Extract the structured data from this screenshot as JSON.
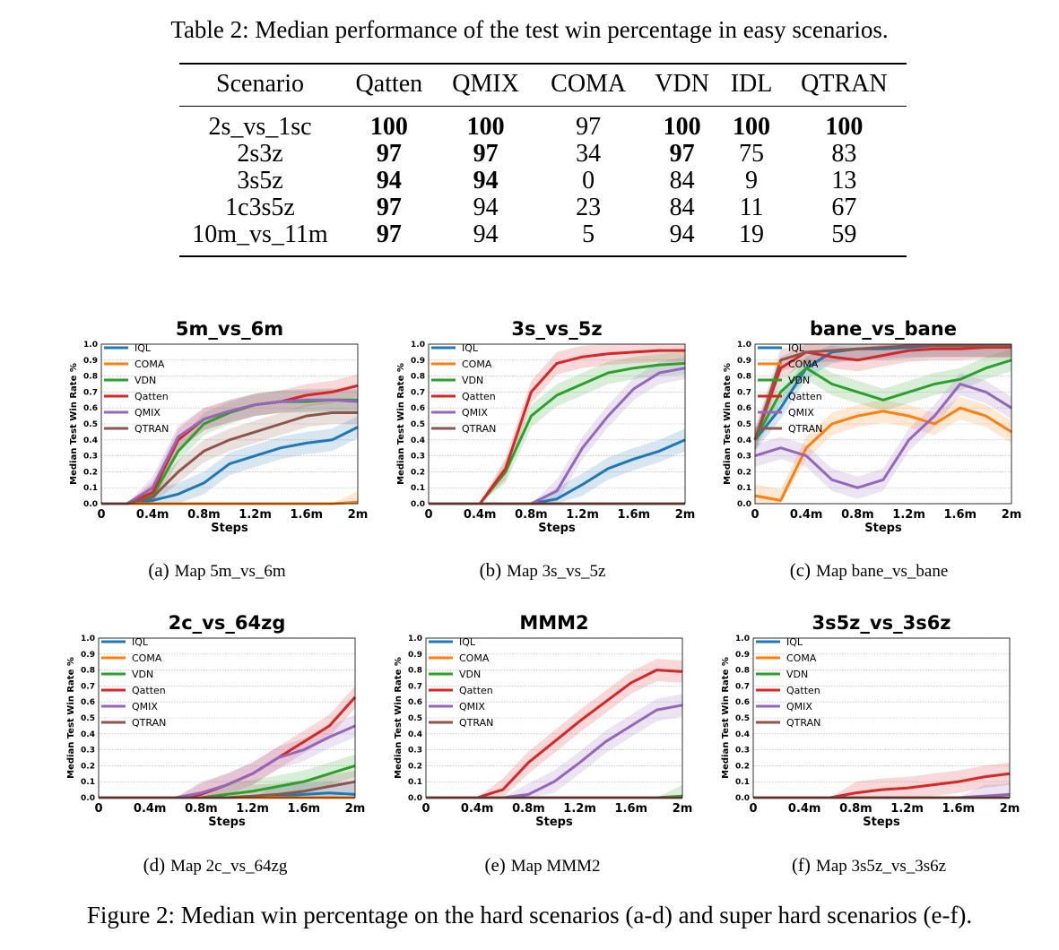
{
  "table": {
    "caption": "Table 2: Median performance of the test win percentage in easy scenarios.",
    "headers": [
      "Scenario",
      "Qatten",
      "QMIX",
      "COMA",
      "VDN",
      "IDL",
      "QTRAN"
    ],
    "rows": [
      {
        "cells": [
          "2s_vs_1sc",
          "100",
          "100",
          "97",
          "100",
          "100",
          "100"
        ],
        "bold": [
          false,
          true,
          true,
          false,
          true,
          true,
          true
        ]
      },
      {
        "cells": [
          "2s3z",
          "97",
          "97",
          "34",
          "97",
          "75",
          "83"
        ],
        "bold": [
          false,
          true,
          true,
          false,
          true,
          false,
          false
        ]
      },
      {
        "cells": [
          "3s5z",
          "94",
          "94",
          "0",
          "84",
          "9",
          "13"
        ],
        "bold": [
          false,
          true,
          true,
          false,
          false,
          false,
          false
        ]
      },
      {
        "cells": [
          "1c3s5z",
          "97",
          "94",
          "23",
          "84",
          "11",
          "67"
        ],
        "bold": [
          false,
          true,
          false,
          false,
          false,
          false,
          false
        ]
      },
      {
        "cells": [
          "10m_vs_11m",
          "97",
          "94",
          "5",
          "94",
          "19",
          "59"
        ],
        "bold": [
          false,
          true,
          false,
          false,
          false,
          false,
          false
        ]
      }
    ]
  },
  "figure": {
    "caption": "Figure 2: Median win percentage on the hard scenarios (a-d) and super hard scenarios (e-f).",
    "subcaptions": [
      {
        "tag": "(a)",
        "text": "Map 5m_vs_6m"
      },
      {
        "tag": "(b)",
        "text": "Map 3s_vs_5z"
      },
      {
        "tag": "(c)",
        "text": "Map bane_vs_bane"
      },
      {
        "tag": "(d)",
        "text": "Map 2c_vs_64zg"
      },
      {
        "tag": "(e)",
        "text": "Map MMM2"
      },
      {
        "tag": "(f)",
        "text": "Map 3s5z_vs_3s6z"
      }
    ]
  },
  "chart_data": [
    {
      "type": "line",
      "title": "5m_vs_6m",
      "xlabel": "Steps",
      "ylabel": "Median Test Win Rate %",
      "x": [
        0,
        0.2,
        0.4,
        0.6,
        0.8,
        1.0,
        1.2,
        1.4,
        1.6,
        1.8,
        2.0
      ],
      "xticks": [
        "0",
        "0.4m",
        "0.8m",
        "1.2m",
        "1.6m",
        "2m"
      ],
      "yticks": [
        "0.0",
        "0.1",
        "0.2",
        "0.3",
        "0.4",
        "0.5",
        "0.6",
        "0.7",
        "0.8",
        "0.9",
        "1.0"
      ],
      "ylim": [
        0,
        1
      ],
      "xlim": [
        0,
        2
      ],
      "series": [
        {
          "name": "IQL",
          "color": "#1f77b4",
          "values": [
            0,
            0,
            0.02,
            0.06,
            0.13,
            0.25,
            0.3,
            0.35,
            0.38,
            0.4,
            0.48
          ]
        },
        {
          "name": "COMA",
          "color": "#ff7f0e",
          "values": [
            0,
            0,
            0,
            0,
            0,
            0,
            0,
            0,
            0,
            0,
            0.01
          ]
        },
        {
          "name": "VDN",
          "color": "#2ca02c",
          "values": [
            0,
            0,
            0.05,
            0.33,
            0.5,
            0.57,
            0.62,
            0.64,
            0.64,
            0.65,
            0.65
          ]
        },
        {
          "name": "Qatten",
          "color": "#d62728",
          "values": [
            0,
            0,
            0.07,
            0.4,
            0.53,
            0.58,
            0.62,
            0.64,
            0.68,
            0.7,
            0.74
          ]
        },
        {
          "name": "QMIX",
          "color": "#9467bd",
          "values": [
            0,
            0,
            0.1,
            0.42,
            0.53,
            0.58,
            0.62,
            0.64,
            0.65,
            0.65,
            0.64
          ]
        },
        {
          "name": "QTRAN",
          "color": "#8c564b",
          "values": [
            0,
            0,
            0.04,
            0.2,
            0.33,
            0.4,
            0.45,
            0.5,
            0.55,
            0.57,
            0.57
          ]
        }
      ]
    },
    {
      "type": "line",
      "title": "3s_vs_5z",
      "xlabel": "Steps",
      "ylabel": "Median Test Win Rate %",
      "x": [
        0,
        0.2,
        0.4,
        0.6,
        0.8,
        1.0,
        1.2,
        1.4,
        1.6,
        1.8,
        2.0
      ],
      "xticks": [
        "0",
        "0.4m",
        "0.8m",
        "1.2m",
        "1.6m",
        "2m"
      ],
      "yticks": [
        "0.0",
        "0.1",
        "0.2",
        "0.3",
        "0.4",
        "0.5",
        "0.6",
        "0.7",
        "0.8",
        "0.9",
        "1.0"
      ],
      "ylim": [
        0,
        1
      ],
      "xlim": [
        0,
        2
      ],
      "series": [
        {
          "name": "IQL",
          "color": "#1f77b4",
          "values": [
            0,
            0,
            0,
            0,
            0,
            0.03,
            0.12,
            0.22,
            0.28,
            0.33,
            0.4
          ]
        },
        {
          "name": "COMA",
          "color": "#ff7f0e",
          "values": [
            0,
            0,
            0,
            0,
            0,
            0,
            0,
            0,
            0,
            0,
            0
          ]
        },
        {
          "name": "VDN",
          "color": "#2ca02c",
          "values": [
            0,
            0,
            0,
            0.2,
            0.55,
            0.68,
            0.75,
            0.82,
            0.85,
            0.87,
            0.88
          ]
        },
        {
          "name": "Qatten",
          "color": "#d62728",
          "values": [
            0,
            0,
            0,
            0.22,
            0.7,
            0.88,
            0.92,
            0.94,
            0.95,
            0.96,
            0.96
          ]
        },
        {
          "name": "QMIX",
          "color": "#9467bd",
          "values": [
            0,
            0,
            0,
            0,
            0,
            0.08,
            0.35,
            0.55,
            0.72,
            0.82,
            0.85
          ]
        },
        {
          "name": "QTRAN",
          "color": "#8c564b",
          "values": [
            0,
            0,
            0,
            0,
            0,
            0,
            0,
            0,
            0,
            0,
            0
          ]
        }
      ]
    },
    {
      "type": "line",
      "title": "bane_vs_bane",
      "xlabel": "Steps",
      "ylabel": "Median Test Win Rate %",
      "x": [
        0,
        0.2,
        0.4,
        0.6,
        0.8,
        1.0,
        1.2,
        1.4,
        1.6,
        1.8,
        2.0
      ],
      "xticks": [
        "0",
        "0.4m",
        "0.8m",
        "1.2m",
        "1.6m",
        "2m"
      ],
      "yticks": [
        "0.0",
        "0.1",
        "0.2",
        "0.3",
        "0.4",
        "0.5",
        "0.6",
        "0.7",
        "0.8",
        "0.9",
        "1.0"
      ],
      "ylim": [
        0,
        1
      ],
      "xlim": [
        0,
        2
      ],
      "series": [
        {
          "name": "IQL",
          "color": "#1f77b4",
          "values": [
            0.4,
            0.6,
            0.85,
            0.95,
            0.97,
            0.97,
            0.98,
            0.99,
            0.99,
            0.99,
            0.99
          ]
        },
        {
          "name": "COMA",
          "color": "#ff7f0e",
          "values": [
            0.05,
            0.02,
            0.35,
            0.5,
            0.55,
            0.58,
            0.55,
            0.5,
            0.6,
            0.55,
            0.45
          ]
        },
        {
          "name": "VDN",
          "color": "#2ca02c",
          "values": [
            0.4,
            0.7,
            0.85,
            0.75,
            0.7,
            0.65,
            0.7,
            0.75,
            0.78,
            0.85,
            0.9
          ]
        },
        {
          "name": "Qatten",
          "color": "#d62728",
          "values": [
            0.4,
            0.85,
            0.95,
            0.92,
            0.9,
            0.93,
            0.96,
            0.97,
            0.97,
            0.98,
            0.98
          ]
        },
        {
          "name": "QMIX",
          "color": "#9467bd",
          "values": [
            0.3,
            0.35,
            0.3,
            0.15,
            0.1,
            0.15,
            0.4,
            0.55,
            0.75,
            0.7,
            0.6
          ]
        },
        {
          "name": "QTRAN",
          "color": "#8c564b",
          "values": [
            0.4,
            0.9,
            0.95,
            0.96,
            0.97,
            0.98,
            0.99,
            0.99,
            0.99,
            0.99,
            0.99
          ]
        }
      ]
    },
    {
      "type": "line",
      "title": "2c_vs_64zg",
      "xlabel": "Steps",
      "ylabel": "Median Test Win Rate %",
      "x": [
        0,
        0.2,
        0.4,
        0.6,
        0.8,
        1.0,
        1.2,
        1.4,
        1.6,
        1.8,
        2.0
      ],
      "xticks": [
        "0",
        "0.4m",
        "0.8m",
        "1.2m",
        "1.6m",
        "2m"
      ],
      "yticks": [
        "0.0",
        "0.1",
        "0.2",
        "0.3",
        "0.4",
        "0.5",
        "0.6",
        "0.7",
        "0.8",
        "0.9",
        "1.0"
      ],
      "ylim": [
        0,
        1
      ],
      "xlim": [
        0,
        2
      ],
      "series": [
        {
          "name": "IQL",
          "color": "#1f77b4",
          "values": [
            0,
            0,
            0,
            0,
            0,
            0,
            0,
            0.01,
            0.02,
            0.03,
            0.02
          ]
        },
        {
          "name": "COMA",
          "color": "#ff7f0e",
          "values": [
            0,
            0,
            0,
            0,
            0,
            0,
            0,
            0,
            0,
            0,
            0
          ]
        },
        {
          "name": "VDN",
          "color": "#2ca02c",
          "values": [
            0,
            0,
            0,
            0,
            0,
            0.02,
            0.04,
            0.07,
            0.1,
            0.15,
            0.2
          ]
        },
        {
          "name": "Qatten",
          "color": "#d62728",
          "values": [
            0,
            0,
            0,
            0,
            0.02,
            0.08,
            0.15,
            0.25,
            0.35,
            0.45,
            0.63
          ]
        },
        {
          "name": "QMIX",
          "color": "#9467bd",
          "values": [
            0,
            0,
            0,
            0,
            0.03,
            0.08,
            0.15,
            0.25,
            0.3,
            0.38,
            0.45
          ]
        },
        {
          "name": "QTRAN",
          "color": "#8c564b",
          "values": [
            0,
            0,
            0,
            0,
            0,
            0,
            0.01,
            0.02,
            0.04,
            0.07,
            0.1
          ]
        }
      ]
    },
    {
      "type": "line",
      "title": "MMM2",
      "xlabel": "Steps",
      "ylabel": "Median Test Win Rate %",
      "x": [
        0,
        0.2,
        0.4,
        0.6,
        0.8,
        1.0,
        1.2,
        1.4,
        1.6,
        1.8,
        2.0
      ],
      "xticks": [
        "0",
        "0.4m",
        "0.8m",
        "1.2m",
        "1.6m",
        "2m"
      ],
      "yticks": [
        "0.0",
        "0.1",
        "0.2",
        "0.3",
        "0.4",
        "0.5",
        "0.6",
        "0.7",
        "0.8",
        "0.9",
        "1.0"
      ],
      "ylim": [
        0,
        1
      ],
      "xlim": [
        0,
        2
      ],
      "series": [
        {
          "name": "IQL",
          "color": "#1f77b4",
          "values": [
            0,
            0,
            0,
            0,
            0,
            0,
            0,
            0,
            0,
            0,
            0
          ]
        },
        {
          "name": "COMA",
          "color": "#ff7f0e",
          "values": [
            0,
            0,
            0,
            0,
            0,
            0,
            0,
            0,
            0,
            0,
            0
          ]
        },
        {
          "name": "VDN",
          "color": "#2ca02c",
          "values": [
            0,
            0,
            0,
            0,
            0,
            0,
            0,
            0,
            0,
            0,
            0.01
          ]
        },
        {
          "name": "Qatten",
          "color": "#d62728",
          "values": [
            0,
            0,
            0,
            0.05,
            0.22,
            0.35,
            0.48,
            0.6,
            0.72,
            0.8,
            0.79
          ]
        },
        {
          "name": "QMIX",
          "color": "#9467bd",
          "values": [
            0,
            0,
            0,
            0,
            0.02,
            0.1,
            0.22,
            0.35,
            0.45,
            0.55,
            0.58
          ]
        },
        {
          "name": "QTRAN",
          "color": "#8c564b",
          "values": [
            0,
            0,
            0,
            0,
            0,
            0,
            0,
            0,
            0,
            0,
            0
          ]
        }
      ]
    },
    {
      "type": "line",
      "title": "3s5z_vs_3s6z",
      "xlabel": "Steps",
      "ylabel": "Median Test Win Rate %",
      "x": [
        0,
        0.2,
        0.4,
        0.6,
        0.8,
        1.0,
        1.2,
        1.4,
        1.6,
        1.8,
        2.0
      ],
      "xticks": [
        "0",
        "0.4m",
        "0.8m",
        "1.2m",
        "1.6m",
        "2m"
      ],
      "yticks": [
        "0.0",
        "0.1",
        "0.2",
        "0.3",
        "0.4",
        "0.5",
        "0.6",
        "0.7",
        "0.8",
        "0.9",
        "1.0"
      ],
      "ylim": [
        0,
        1
      ],
      "xlim": [
        0,
        2
      ],
      "series": [
        {
          "name": "IQL",
          "color": "#1f77b4",
          "values": [
            0,
            0,
            0,
            0,
            0,
            0,
            0,
            0,
            0,
            0,
            0
          ]
        },
        {
          "name": "COMA",
          "color": "#ff7f0e",
          "values": [
            0,
            0,
            0,
            0,
            0,
            0,
            0,
            0,
            0,
            0,
            0
          ]
        },
        {
          "name": "VDN",
          "color": "#2ca02c",
          "values": [
            0,
            0,
            0,
            0,
            0,
            0,
            0,
            0,
            0,
            0,
            0
          ]
        },
        {
          "name": "Qatten",
          "color": "#d62728",
          "values": [
            0,
            0,
            0,
            0,
            0.03,
            0.05,
            0.06,
            0.08,
            0.1,
            0.13,
            0.15
          ]
        },
        {
          "name": "QMIX",
          "color": "#9467bd",
          "values": [
            0,
            0,
            0,
            0,
            0,
            0,
            0,
            0,
            0,
            0.01,
            0.02
          ]
        },
        {
          "name": "QTRAN",
          "color": "#8c564b",
          "values": [
            0,
            0,
            0,
            0,
            0,
            0,
            0,
            0,
            0,
            0,
            0
          ]
        }
      ]
    }
  ]
}
